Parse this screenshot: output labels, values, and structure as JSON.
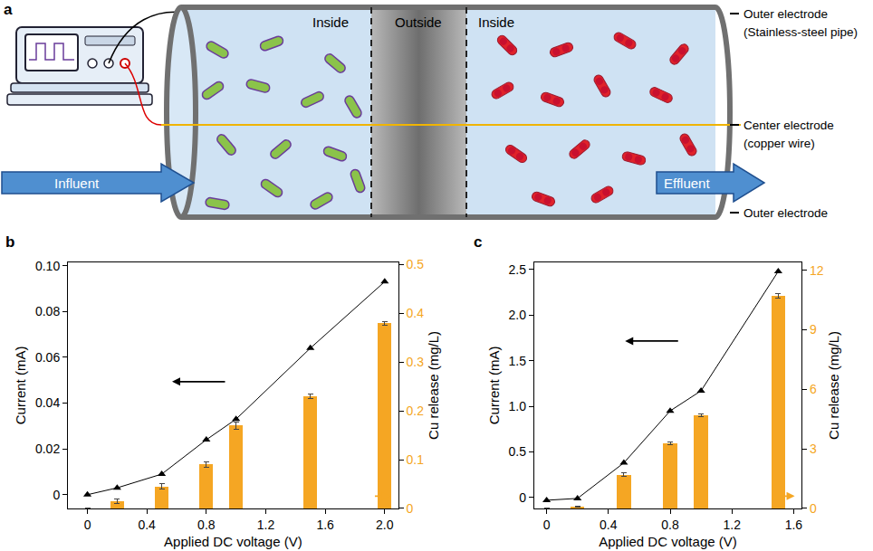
{
  "diagram": {
    "panel": "a",
    "sections": [
      "Inside",
      "Outside",
      "Inside"
    ],
    "labels": {
      "outer_electrode_top": [
        "Outer electrode",
        "(Stainless-steel pipe)"
      ],
      "center_electrode": [
        "Center electrode",
        "(copper wire)"
      ],
      "outer_electrode_bottom": [
        "Outer electrode"
      ]
    },
    "flows": {
      "influent": "Influent",
      "effluent": "Effluent"
    }
  },
  "chart_data": [
    {
      "panel": "b",
      "type": "combo",
      "xlabel": "Applied DC voltage (V)",
      "ylabel": "Current (mA)",
      "y2label": "Cu release (mg/L)",
      "x": [
        0,
        0.2,
        0.5,
        0.8,
        1.0,
        1.5,
        2.0
      ],
      "xlim": [
        -0.13,
        2.09
      ],
      "xticks": [
        0,
        0.4,
        0.8,
        1.2,
        1.6,
        {
          "value": 2,
          "label": "2.0"
        }
      ],
      "ylim": [
        -0.006,
        0.1015
      ],
      "yticks": [
        0,
        0.02,
        0.04,
        0.06,
        0.08,
        {
          "value": 0.1,
          "label": "0.10"
        }
      ],
      "y2lim": [
        0,
        0.505
      ],
      "y2ticks": [
        0,
        0.1,
        0.2,
        0.3,
        0.4,
        0.5
      ],
      "grid": false,
      "series": [
        {
          "type": "bar",
          "axis": "y2",
          "color": "#F5A623",
          "values": [
            0,
            0.015,
            0.045,
            0.09,
            0.17,
            0.23,
            0.38
          ],
          "errors": [
            0,
            0.004,
            0.006,
            0.005,
            0.008,
            0.005,
            0.004
          ]
        },
        {
          "type": "line",
          "color": "#000000",
          "marker": "triangle",
          "line_style": "solid",
          "values": [
            0,
            0.003,
            0.009,
            0.024,
            0.033,
            0.064,
            0.093
          ]
        }
      ]
    },
    {
      "panel": "c",
      "type": "combo",
      "xlabel": "Applied DC voltage (V)",
      "ylabel": "Current (mA)",
      "y2label": "Cu release (mg/L)",
      "x": [
        0,
        0.2,
        0.5,
        0.8,
        1.0,
        1.5
      ],
      "xlim": [
        -0.08,
        1.65
      ],
      "xticks": [
        0,
        0.4,
        0.8,
        1.2,
        1.6
      ],
      "ylim": [
        -0.12,
        2.58
      ],
      "yticks": [
        0,
        0.5,
        {
          "value": 1,
          "label": "1.0"
        },
        1.5,
        {
          "value": 2,
          "label": "2.0"
        },
        2.5
      ],
      "y2lim": [
        0,
        12.4
      ],
      "y2ticks": [
        0,
        3,
        6,
        9,
        12
      ],
      "grid": false,
      "series": [
        {
          "type": "bar",
          "axis": "y2",
          "color": "#F5A623",
          "values": [
            0,
            0.1,
            1.7,
            3.3,
            4.7,
            10.7
          ],
          "errors": [
            0,
            0.03,
            0.08,
            0.07,
            0.07,
            0.1
          ]
        },
        {
          "type": "line",
          "color": "#000000",
          "marker": "triangle",
          "line_style": "solid",
          "values": [
            -0.03,
            -0.01,
            0.38,
            0.95,
            1.17,
            2.48
          ]
        }
      ]
    }
  ]
}
